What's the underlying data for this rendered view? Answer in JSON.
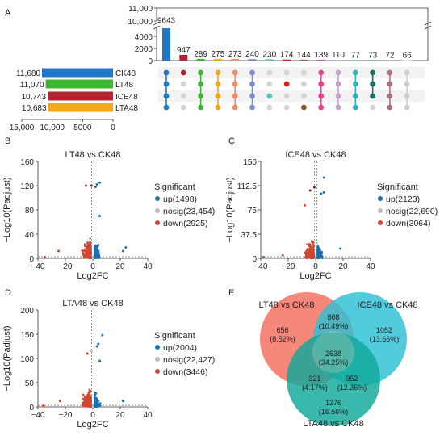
{
  "panels": {
    "A": "A",
    "B": "B",
    "C": "C",
    "D": "D",
    "E": "E"
  },
  "chart_data": [
    {
      "type": "upset",
      "sets": [
        "CK48",
        "LT48",
        "ICE48",
        "LTA48"
      ],
      "set_sizes": [
        11680,
        11070,
        10743,
        10683
      ],
      "set_colors": [
        "#1f78c8",
        "#3cb82e",
        "#b52330",
        "#f2a81d"
      ],
      "set_axis_ticks": [
        "15,000",
        "10,000",
        "5000",
        "0"
      ],
      "intersection_axis_ticks_upper": [
        "11,000",
        "10,000"
      ],
      "intersection_axis_ticks_lower": [
        "4000",
        "2000",
        "0"
      ],
      "intersections": [
        {
          "value": 9643,
          "sets": [
            "CK48",
            "LT48",
            "ICE48",
            "LTA48"
          ],
          "color": "#1f78c8"
        },
        {
          "value": 947,
          "sets": [
            "CK48"
          ],
          "color": "#b52330"
        },
        {
          "value": 289,
          "sets": [
            "CK48",
            "LT48",
            "ICE48",
            "LTA48"
          ],
          "color": "#3cb82e"
        },
        {
          "value": 275,
          "sets": [
            "CK48",
            "LT48",
            "ICE48",
            "LTA48"
          ],
          "color": "#f2a81d"
        },
        {
          "value": 273,
          "sets": [
            "CK48",
            "LT48",
            "ICE48",
            "LTA48"
          ],
          "color": "#f28a6a"
        },
        {
          "value": 240,
          "sets": [
            "CK48",
            "LT48",
            "ICE48",
            "LTA48"
          ],
          "color": "#7b8ec8"
        },
        {
          "value": 230,
          "sets": [
            "ICE48"
          ],
          "color": "#5cc4b8"
        },
        {
          "value": 174,
          "sets": [
            "LT48"
          ],
          "color": "#e02020"
        },
        {
          "value": 144,
          "sets": [
            "LTA48"
          ],
          "color": "#8b5a2b"
        },
        {
          "value": 139,
          "sets": [
            "CK48",
            "LT48",
            "ICE48",
            "LTA48"
          ],
          "color": "#e8408c"
        },
        {
          "value": 110,
          "sets": [
            "CK48",
            "LT48",
            "ICE48",
            "LTA48"
          ],
          "color": "#c8a0d0"
        },
        {
          "value": 77,
          "sets": [
            "CK48",
            "LT48",
            "ICE48",
            "LTA48"
          ],
          "color": "#28b4b8"
        },
        {
          "value": 73,
          "sets": [
            "CK48",
            "LT48",
            "ICE48"
          ],
          "color": "#1a6f6a"
        },
        {
          "value": 72,
          "sets": [
            "CK48",
            "LT48",
            "ICE48",
            "LTA48"
          ],
          "color": "#b06e88"
        },
        {
          "value": 66,
          "sets": [
            "CK48",
            "LT48",
            "ICE48",
            "LTA48"
          ],
          "color": "#cccccc"
        }
      ]
    },
    {
      "type": "scatter",
      "title": "LT48 vs CK48",
      "xlabel": "Log2FC",
      "ylabel": "−Log10(Padjust)",
      "xlim": [
        -40,
        40
      ],
      "ylim": [
        0,
        160
      ],
      "xticks": [
        "−40",
        "−20",
        "0",
        "20",
        "40"
      ],
      "yticks": [
        "0",
        "40",
        "80",
        "120",
        "160"
      ],
      "legend_title": "Significant",
      "legend": [
        "up(1498)",
        "nosig(23,454)",
        "down(2925)"
      ],
      "outliers": [
        [
          5,
          125
        ],
        [
          3,
          122
        ],
        [
          -1,
          120
        ],
        [
          -5,
          120
        ],
        [
          2,
          118
        ],
        [
          5,
          70
        ],
        [
          22,
          12
        ],
        [
          24,
          18
        ],
        [
          -25,
          12
        ],
        [
          -35,
          2
        ]
      ]
    },
    {
      "type": "scatter",
      "title": "ICE48 vs CK48",
      "xlabel": "Log2FC",
      "ylabel": "−Log10(Padjust)",
      "xlim": [
        -40,
        40
      ],
      "ylim": [
        0,
        150
      ],
      "xticks": [
        "−40",
        "−20",
        "0",
        "20",
        "40"
      ],
      "yticks": [
        "0",
        "37.5",
        "75",
        "112.5",
        "150"
      ],
      "legend_title": "Significant",
      "legend": [
        "up(2123)",
        "nosig(22,690)",
        "down(3064)"
      ],
      "outliers": [
        [
          6,
          125
        ],
        [
          4,
          100
        ],
        [
          -1,
          110
        ],
        [
          -4,
          105
        ],
        [
          6,
          102
        ],
        [
          -8,
          82
        ],
        [
          18,
          15
        ],
        [
          -24,
          5
        ],
        [
          -38,
          2
        ]
      ]
    },
    {
      "type": "scatter",
      "title": "LTA48 vs CK48",
      "xlabel": "Log2FC",
      "ylabel": "−Log10(Padjust)",
      "xlim": [
        -40,
        40
      ],
      "ylim": [
        0,
        200
      ],
      "xticks": [
        "−40",
        "−20",
        "0",
        "20",
        "40"
      ],
      "yticks": [
        "0",
        "50",
        "100",
        "150",
        "200"
      ],
      "legend_title": "Significant",
      "legend": [
        "up(2004)",
        "nosig(22,427)",
        "down(3446)"
      ],
      "outliers": [
        [
          7,
          148
        ],
        [
          4,
          130
        ],
        [
          3,
          125
        ],
        [
          -1,
          115
        ],
        [
          -4,
          110
        ],
        [
          5,
          95
        ],
        [
          22,
          12
        ],
        [
          -24,
          12
        ],
        [
          -36,
          2
        ]
      ]
    },
    {
      "type": "venn",
      "sets": [
        "LT48 vs CK48",
        "ICE48 vs CK48",
        "LTA48 vs CK48"
      ],
      "set_colors": [
        "#f46d5e",
        "#2cc0d4",
        "#10a89a"
      ],
      "regions": [
        {
          "count": "656",
          "pct": "(8.52%)"
        },
        {
          "count": "808",
          "pct": "(10.49%)"
        },
        {
          "count": "1052",
          "pct": "(13.66%)"
        },
        {
          "count": "2638",
          "pct": "(34.25%)"
        },
        {
          "count": "321",
          "pct": "(4.17%)"
        },
        {
          "count": "952",
          "pct": "(12.36%)"
        },
        {
          "count": "1276",
          "pct": "(16.56%)"
        }
      ]
    }
  ]
}
